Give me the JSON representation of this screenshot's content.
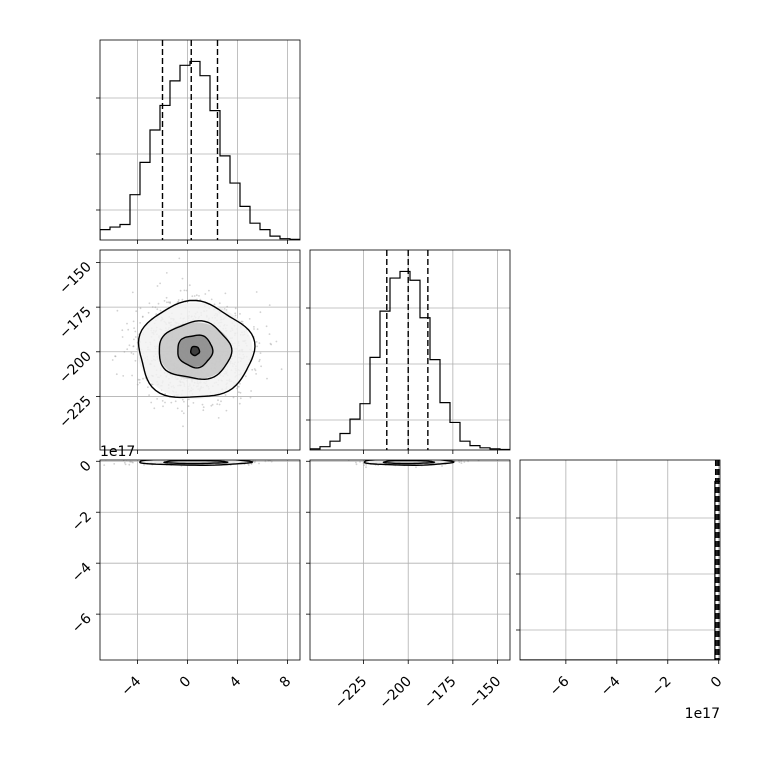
{
  "chart_data": {
    "type": "corner",
    "grid": true,
    "parameters": [
      {
        "range": [
          -7,
          9
        ],
        "ticks": [
          -4,
          0,
          4,
          8
        ],
        "offset_text": ""
      },
      {
        "range": [
          -255,
          -143
        ],
        "ticks": [
          -225,
          -200,
          -175,
          -150
        ],
        "offset_text": ""
      },
      {
        "range": [
          -7.8,
          0.05
        ],
        "ticks": [
          -6,
          -4,
          -2,
          0
        ],
        "offset_text": "1e17"
      }
    ],
    "quantiles": [
      [
        -2.0,
        0.3,
        2.4
      ],
      [
        -212,
        -200,
        -189
      ],
      [
        -0.12,
        -0.06,
        0.0
      ]
    ],
    "histograms": [
      {
        "bin_edges": [
          -7,
          -6.2,
          -5.4,
          -4.6,
          -3.8,
          -3.0,
          -2.2,
          -1.4,
          -0.6,
          0.2,
          1.0,
          1.8,
          2.6,
          3.4,
          4.2,
          5.0,
          5.8,
          6.6,
          7.4,
          8.2,
          9.0
        ],
        "counts": [
          0.8,
          1.0,
          1.2,
          3.5,
          6.0,
          8.5,
          10.4,
          12.3,
          13.5,
          13.8,
          12.7,
          10.0,
          6.5,
          4.4,
          2.6,
          1.3,
          0.8,
          0.3,
          0.1,
          0.05
        ]
      },
      {
        "bin_edges": [
          -255,
          -249.4,
          -243.8,
          -238.2,
          -232.6,
          -227,
          -221.4,
          -215.8,
          -210.2,
          -204.6,
          -199,
          -193.4,
          -187.8,
          -182.2,
          -176.6,
          -171,
          -165.4,
          -159.8,
          -154.2,
          -148.6,
          -143
        ],
        "counts": [
          0.1,
          0.3,
          0.8,
          1.5,
          2.8,
          4.2,
          8.4,
          12.6,
          15.6,
          16.2,
          15.4,
          12.0,
          8.2,
          4.3,
          2.5,
          0.8,
          0.4,
          0.2,
          0.1,
          0.05
        ]
      },
      {
        "bin_edges": [
          -7.8,
          -0.15,
          -0.05,
          0.05
        ],
        "counts": [
          0,
          3.2,
          3.2
        ]
      }
    ],
    "joint": [
      {
        "x_param": 0,
        "y_param": 1,
        "center": [
          0.6,
          -199.5
        ],
        "contour_radii": [
          [
            0.35,
            2.5
          ],
          [
            1.4,
            9
          ],
          [
            2.9,
            16
          ],
          [
            4.6,
            27
          ]
        ]
      },
      {
        "x_param": 0,
        "y_param": 2,
        "center": [
          0.6,
          -0.03
        ],
        "contour_radii": [
          [
            2.5,
            0.06
          ],
          [
            4.5,
            0.12
          ]
        ]
      },
      {
        "x_param": 1,
        "y_param": 2,
        "center": [
          -200,
          -0.03
        ],
        "contour_radii": [
          [
            14,
            0.06
          ],
          [
            25,
            0.12
          ]
        ]
      }
    ]
  }
}
